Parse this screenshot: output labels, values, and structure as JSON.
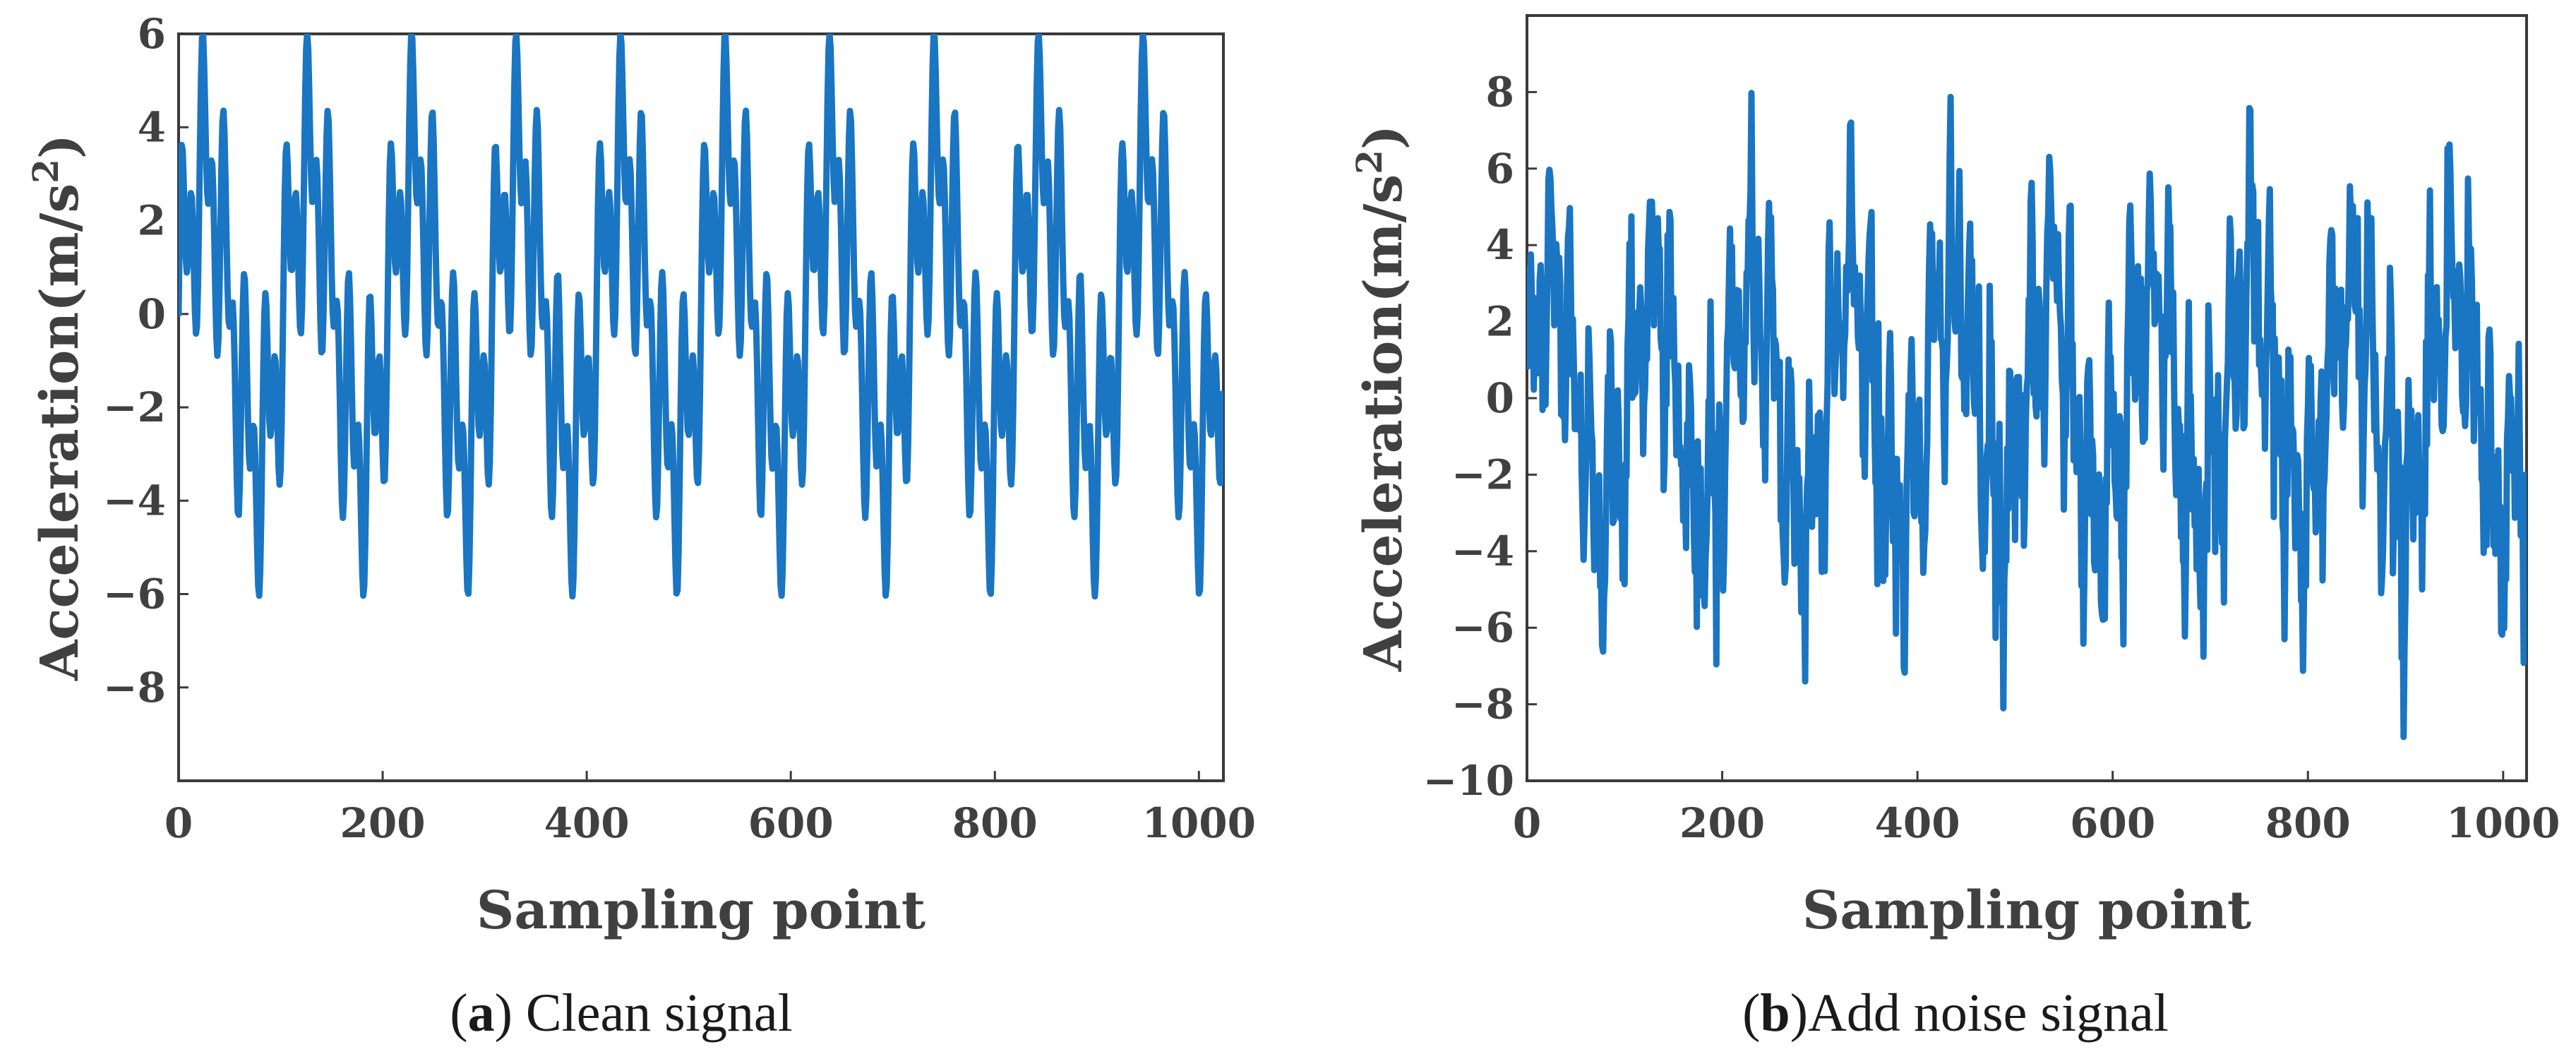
{
  "line_color": "#1a75c2",
  "chart_data": [
    {
      "type": "line",
      "name": "clean",
      "caption_letter": "a",
      "caption_open": "(",
      "caption_close": ")",
      "caption_text": " Clean signal",
      "xlabel": "Sampling point",
      "ylabel": "Acceleration(m/s",
      "ylabel_sup": "2",
      "ylabel_close": ")",
      "xlim": [
        0,
        1024
      ],
      "ylim": [
        -10,
        6
      ],
      "xticks": [
        0,
        200,
        400,
        600,
        800,
        1000
      ],
      "xtick_labels": [
        "0",
        "200",
        "400",
        "600",
        "800",
        "1000"
      ],
      "yticks": [
        -8,
        -6,
        -4,
        -2,
        0,
        2,
        4,
        6
      ],
      "ytick_labels": [
        "−8",
        "−6",
        "−4",
        "−2",
        "0",
        "2",
        "4",
        "6"
      ],
      "signal": {
        "n_points": 1024,
        "period_samples": 102.4,
        "components": [
          {
            "amplitude": 3.0,
            "cycles_per_period": 1
          },
          {
            "amplitude": 1.8,
            "cycles_per_period": 5
          },
          {
            "amplitude": 1.7,
            "cycles_per_period": 10
          }
        ],
        "noise_std": 0
      }
    },
    {
      "type": "line",
      "name": "noisy",
      "caption_letter": "b",
      "caption_open": "(",
      "caption_close": ")",
      "caption_text": "Add noise signal",
      "xlabel": "Sampling point",
      "ylabel": "Acceleration(m/s",
      "ylabel_sup": "2",
      "ylabel_close": ")",
      "xlim": [
        0,
        1024
      ],
      "ylim": [
        -10,
        10
      ],
      "xticks": [
        0,
        200,
        400,
        600,
        800,
        1000
      ],
      "xtick_labels": [
        "0",
        "200",
        "400",
        "600",
        "800",
        "1000"
      ],
      "yticks": [
        -10,
        -8,
        -6,
        -4,
        -2,
        0,
        2,
        4,
        6,
        8
      ],
      "ytick_labels": [
        "−10",
        "−8",
        "−6",
        "−4",
        "−2",
        "0",
        "2",
        "4",
        "6",
        "8"
      ],
      "signal": {
        "n_points": 1024,
        "period_samples": 102.4,
        "components": [
          {
            "amplitude": 3.0,
            "cycles_per_period": 1
          },
          {
            "amplitude": 1.8,
            "cycles_per_period": 5
          },
          {
            "amplitude": 1.7,
            "cycles_per_period": 10
          }
        ],
        "noise_std": 1.2
      }
    }
  ]
}
